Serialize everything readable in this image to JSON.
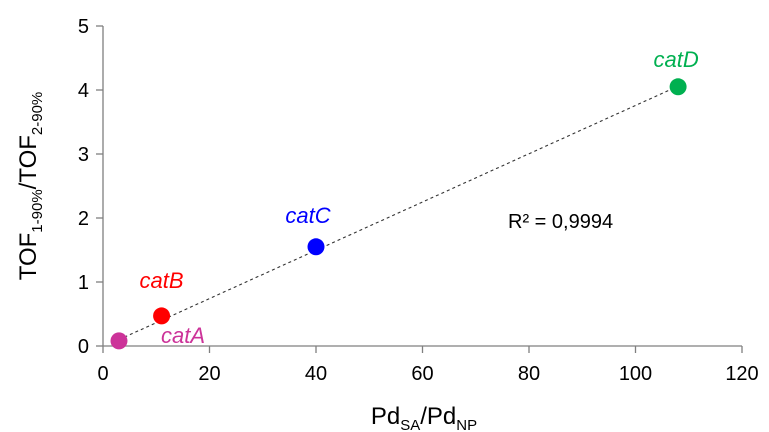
{
  "chart_data": {
    "type": "scatter",
    "xlabel_main": "Pd",
    "xlabel_sub1": "SA",
    "xlabel_mid": "/Pd",
    "xlabel_sub2": "NP",
    "ylabel_main1": "TOF",
    "ylabel_sub1": "1-90%",
    "ylabel_mid": "/TOF",
    "ylabel_sub2": "2-90%",
    "xlim": [
      0,
      120
    ],
    "ylim": [
      0,
      5
    ],
    "xticks": [
      0,
      20,
      40,
      60,
      80,
      100,
      120
    ],
    "yticks": [
      0,
      1,
      2,
      3,
      4,
      5
    ],
    "xtick_labels": [
      "0",
      "20",
      "40",
      "60",
      "80",
      "100",
      "120"
    ],
    "ytick_labels": [
      "0",
      "1",
      "2",
      "3",
      "4",
      "5"
    ],
    "grid": false,
    "points": [
      {
        "label": "catA",
        "x": 3,
        "y": 0.08,
        "color": "#cc3399"
      },
      {
        "label": "catB",
        "x": 11,
        "y": 0.47,
        "color": "#ff0000"
      },
      {
        "label": "catC",
        "x": 40,
        "y": 1.55,
        "color": "#0000ff"
      },
      {
        "label": "catD",
        "x": 108,
        "y": 4.05,
        "color": "#00b050"
      }
    ],
    "trendline": {
      "x": [
        3,
        108
      ],
      "y": [
        0.1,
        4.06
      ],
      "style": "dotted"
    },
    "annotation": "R² = 0,9994"
  }
}
